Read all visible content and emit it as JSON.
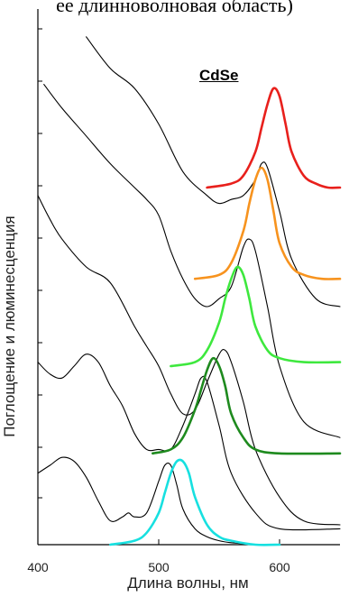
{
  "caption": "ее длинноволновая область)",
  "chart_data": {
    "type": "line",
    "title": "CdSe",
    "xlabel": "Длина волны, нм",
    "ylabel": "Поглощение и люминесценция",
    "xlim": [
      400,
      650
    ],
    "x_ticks": [
      400,
      500,
      600
    ],
    "grid": false,
    "y_ticks_labeled": false,
    "series": [
      {
        "kind": "absorption",
        "color": "#000000",
        "x": [
          400,
          410,
          420,
          430,
          440,
          450,
          460,
          470,
          475,
          480,
          490,
          500,
          505,
          510,
          515,
          520,
          530,
          540,
          550,
          560,
          580
        ],
        "y": [
          0.18,
          0.2,
          0.22,
          0.21,
          0.17,
          0.11,
          0.06,
          0.07,
          0.08,
          0.07,
          0.08,
          0.16,
          0.2,
          0.2,
          0.15,
          0.09,
          0.04,
          0.02,
          0.01,
          0.005,
          0.0
        ]
      },
      {
        "kind": "absorption",
        "color": "#000000",
        "x": [
          400,
          410,
          420,
          430,
          440,
          450,
          460,
          470,
          480,
          490,
          500,
          510,
          520,
          530,
          535,
          540,
          550,
          560,
          580,
          600,
          650
        ],
        "y": [
          0.46,
          0.43,
          0.42,
          0.45,
          0.48,
          0.46,
          0.4,
          0.35,
          0.28,
          0.24,
          0.24,
          0.24,
          0.3,
          0.38,
          0.42,
          0.41,
          0.3,
          0.18,
          0.08,
          0.04,
          0.04
        ]
      },
      {
        "kind": "absorption",
        "color": "#000000",
        "x": [
          400,
          410,
          420,
          440,
          460,
          480,
          490,
          500,
          510,
          520,
          530,
          540,
          550,
          555,
          560,
          570,
          580,
          600,
          620,
          650
        ],
        "y": [
          0.88,
          0.82,
          0.77,
          0.7,
          0.66,
          0.55,
          0.5,
          0.45,
          0.38,
          0.33,
          0.34,
          0.41,
          0.48,
          0.49,
          0.46,
          0.36,
          0.24,
          0.12,
          0.06,
          0.05
        ]
      },
      {
        "kind": "absorption",
        "color": "#000000",
        "x": [
          405,
          420,
          440,
          460,
          480,
          490,
          500,
          510,
          520,
          530,
          540,
          550,
          560,
          570,
          575,
          580,
          590,
          600,
          620,
          650
        ],
        "y": [
          1.16,
          1.1,
          1.03,
          0.96,
          0.9,
          0.87,
          0.83,
          0.74,
          0.67,
          0.62,
          0.6,
          0.62,
          0.65,
          0.75,
          0.77,
          0.74,
          0.6,
          0.45,
          0.31,
          0.27
        ]
      },
      {
        "kind": "absorption",
        "color": "#000000",
        "x": [
          440,
          460,
          480,
          500,
          520,
          540,
          550,
          560,
          570,
          580,
          585,
          590,
          600,
          610,
          630,
          650
        ],
        "y": [
          1.28,
          1.2,
          1.15,
          1.06,
          0.94,
          0.88,
          0.86,
          0.87,
          0.88,
          0.92,
          0.96,
          0.95,
          0.84,
          0.72,
          0.62,
          0.6
        ]
      },
      {
        "kind": "luminescence",
        "color": "#17e0e0",
        "x": [
          460,
          480,
          490,
          500,
          505,
          510,
          515,
          520,
          525,
          530,
          540,
          550,
          560,
          580,
          600
        ],
        "y": [
          0.0,
          0.01,
          0.03,
          0.08,
          0.13,
          0.18,
          0.21,
          0.21,
          0.18,
          0.12,
          0.05,
          0.02,
          0.01,
          0.0,
          0.0
        ]
      },
      {
        "kind": "luminescence",
        "color": "#1e8a1e",
        "x": [
          495,
          510,
          520,
          530,
          535,
          540,
          545,
          550,
          555,
          560,
          570,
          580,
          600,
          650
        ],
        "y": [
          0.23,
          0.24,
          0.27,
          0.34,
          0.39,
          0.44,
          0.47,
          0.45,
          0.4,
          0.33,
          0.27,
          0.24,
          0.23,
          0.23
        ]
      },
      {
        "kind": "luminescence",
        "color": "#3ee83e",
        "x": [
          510,
          530,
          540,
          550,
          555,
          560,
          565,
          570,
          575,
          580,
          590,
          600,
          620,
          650
        ],
        "y": [
          0.45,
          0.46,
          0.49,
          0.56,
          0.62,
          0.67,
          0.7,
          0.68,
          0.62,
          0.55,
          0.49,
          0.47,
          0.46,
          0.46
        ]
      },
      {
        "kind": "luminescence",
        "color": "#f7931e",
        "x": [
          530,
          550,
          560,
          570,
          575,
          580,
          585,
          590,
          595,
          600,
          610,
          620,
          635,
          650
        ],
        "y": [
          0.67,
          0.68,
          0.71,
          0.79,
          0.86,
          0.92,
          0.95,
          0.92,
          0.84,
          0.76,
          0.7,
          0.68,
          0.67,
          0.67
        ]
      },
      {
        "kind": "luminescence",
        "color": "#e8201c",
        "x": [
          540,
          560,
          570,
          580,
          585,
          590,
          595,
          600,
          605,
          610,
          620,
          630,
          640,
          650
        ],
        "y": [
          0.9,
          0.91,
          0.93,
          0.99,
          1.05,
          1.11,
          1.15,
          1.13,
          1.06,
          0.99,
          0.93,
          0.91,
          0.9,
          0.9
        ]
      }
    ]
  }
}
